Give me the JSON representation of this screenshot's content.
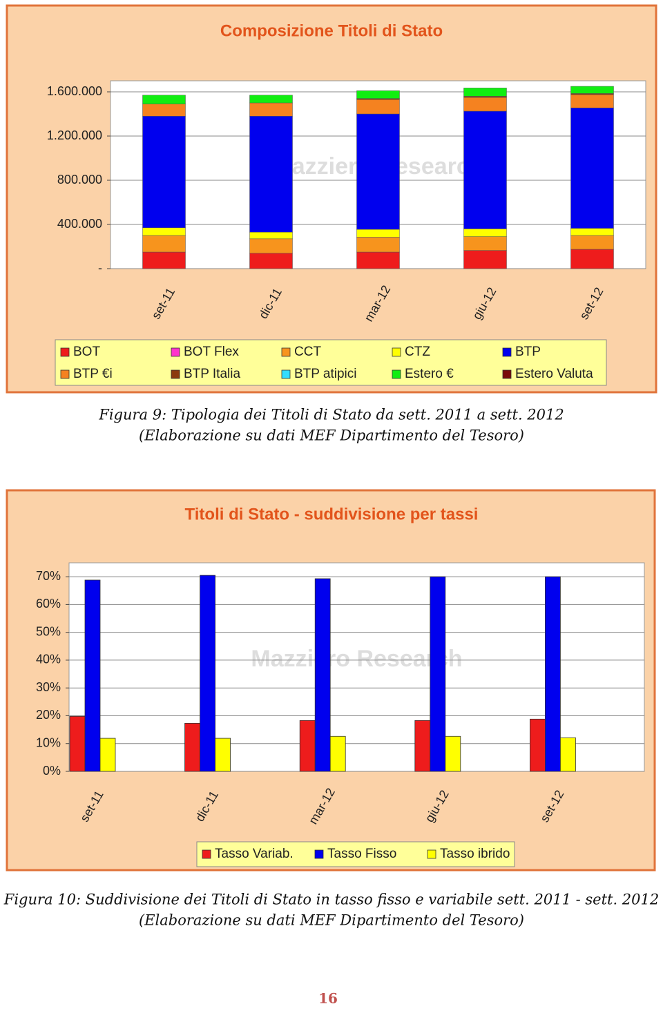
{
  "chart_data": [
    {
      "type": "bar",
      "stacked": true,
      "title": "Composizione Titoli di Stato",
      "logo": "Mazziero Research",
      "categories": [
        "set-11",
        "dic-11",
        "mar-12",
        "giu-12",
        "set-12"
      ],
      "series": [
        {
          "name": "BOT",
          "color": "#ee1c1c",
          "values": [
            150000,
            140000,
            150000,
            165000,
            175000
          ]
        },
        {
          "name": "BOT Flex",
          "color": "#ff33cc",
          "values": [
            0,
            0,
            0,
            0,
            0
          ]
        },
        {
          "name": "CCT",
          "color": "#f7941d",
          "values": [
            150000,
            130000,
            135000,
            125000,
            125000
          ]
        },
        {
          "name": "CTZ",
          "color": "#ffff00",
          "values": [
            70000,
            60000,
            70000,
            70000,
            65000
          ]
        },
        {
          "name": "BTP",
          "color": "#0000ee",
          "values": [
            1010000,
            1050000,
            1045000,
            1065000,
            1090000
          ]
        },
        {
          "name": "BTP €i",
          "color": "#f58220",
          "values": [
            110000,
            120000,
            130000,
            125000,
            120000
          ]
        },
        {
          "name": "BTP Italia",
          "color": "#8b3a0e",
          "values": [
            0,
            0,
            10000,
            10000,
            10000
          ]
        },
        {
          "name": "BTP atipici",
          "color": "#33ddff",
          "values": [
            0,
            0,
            0,
            0,
            0
          ]
        },
        {
          "name": "Estero €",
          "color": "#11ee11",
          "values": [
            80000,
            70000,
            70000,
            75000,
            65000
          ]
        },
        {
          "name": "Estero Valuta",
          "color": "#7a0a0a",
          "values": [
            0,
            0,
            0,
            0,
            0
          ]
        }
      ],
      "ylim": [
        0,
        1700000
      ],
      "yticks": [
        {
          "value": 0,
          "label": "-"
        },
        {
          "value": 400000,
          "label": "400.000"
        },
        {
          "value": 800000,
          "label": "800.000"
        },
        {
          "value": 1200000,
          "label": "1.200.000"
        },
        {
          "value": 1600000,
          "label": "1.600.000"
        }
      ],
      "grid": true
    },
    {
      "type": "bar",
      "stacked": false,
      "title": "Titoli di Stato - suddivisione per tassi",
      "logo": "Mazziero Research",
      "categories": [
        "set-11",
        "dic-11",
        "mar-12",
        "giu-12",
        "set-12"
      ],
      "series": [
        {
          "name": "Tasso Variab.",
          "color": "#ee1c1c",
          "values": [
            19.8,
            17.3,
            18.3,
            18.3,
            18.8
          ]
        },
        {
          "name": "Tasso Fisso",
          "color": "#0000ee",
          "values": [
            68.8,
            70.5,
            69.3,
            70.0,
            70.0
          ]
        },
        {
          "name": "Tasso ibrido",
          "color": "#ffff00",
          "values": [
            11.9,
            11.9,
            12.6,
            12.6,
            12.1
          ]
        }
      ],
      "ylim": [
        0,
        75
      ],
      "yticks": [
        {
          "value": 0,
          "label": "0%"
        },
        {
          "value": 10,
          "label": "10%"
        },
        {
          "value": 20,
          "label": "20%"
        },
        {
          "value": 30,
          "label": "30%"
        },
        {
          "value": 40,
          "label": "40%"
        },
        {
          "value": 50,
          "label": "50%"
        },
        {
          "value": 60,
          "label": "60%"
        },
        {
          "value": 70,
          "label": "70%"
        }
      ],
      "grid": true
    }
  ],
  "captions": [
    [
      "Figura 9: Tipologia dei Titoli di Stato da sett. 2011 a sett. 2012",
      "(Elaborazione su dati MEF Dipartimento del Tesoro)"
    ],
    [
      "Figura 10: Suddivisione dei Titoli di Stato in tasso fisso e variabile sett. 2011 - sett. 2012",
      "(Elaborazione su dati MEF Dipartimento del Tesoro)"
    ]
  ],
  "page_number": "16"
}
